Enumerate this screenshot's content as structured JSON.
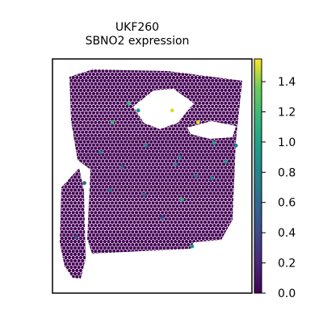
{
  "chart_data": {
    "type": "scatter",
    "title": "UKF260",
    "subtitle": "SBNO2 expression",
    "xlabel": "",
    "ylabel": "",
    "colorbar": {
      "colormap": "viridis",
      "vmin": 0.0,
      "vmax": 1.55,
      "ticks": [
        "0.0",
        "0.2",
        "0.4",
        "0.6",
        "0.8",
        "1.0",
        "1.2",
        "1.4"
      ]
    },
    "background_value": 0.0,
    "series": [
      {
        "points": [
          {
            "x": 0.38,
            "y": 0.81,
            "v": 1.1
          },
          {
            "x": 0.43,
            "y": 0.78,
            "v": 0.9
          },
          {
            "x": 0.3,
            "y": 0.73,
            "v": 1.2
          },
          {
            "x": 0.6,
            "y": 0.78,
            "v": 1.5
          },
          {
            "x": 0.73,
            "y": 0.73,
            "v": 1.5
          },
          {
            "x": 0.81,
            "y": 0.64,
            "v": 1.0
          },
          {
            "x": 0.64,
            "y": 0.58,
            "v": 0.8
          },
          {
            "x": 0.62,
            "y": 0.55,
            "v": 0.7
          },
          {
            "x": 0.8,
            "y": 0.49,
            "v": 0.8
          },
          {
            "x": 0.72,
            "y": 0.5,
            "v": 0.7
          },
          {
            "x": 0.35,
            "y": 0.54,
            "v": 0.6
          },
          {
            "x": 0.29,
            "y": 0.44,
            "v": 0.7
          },
          {
            "x": 0.46,
            "y": 0.42,
            "v": 0.6
          },
          {
            "x": 0.65,
            "y": 0.4,
            "v": 1.1
          },
          {
            "x": 0.55,
            "y": 0.32,
            "v": 0.5
          },
          {
            "x": 0.24,
            "y": 0.6,
            "v": 0.8
          },
          {
            "x": 0.87,
            "y": 0.56,
            "v": 0.9
          },
          {
            "x": 0.92,
            "y": 0.63,
            "v": 0.7
          },
          {
            "x": 0.16,
            "y": 0.47,
            "v": 0.6
          },
          {
            "x": 0.12,
            "y": 0.24,
            "v": 0.5
          },
          {
            "x": 0.7,
            "y": 0.2,
            "v": 0.9
          },
          {
            "x": 0.47,
            "y": 0.63,
            "v": 0.7
          }
        ]
      }
    ]
  }
}
